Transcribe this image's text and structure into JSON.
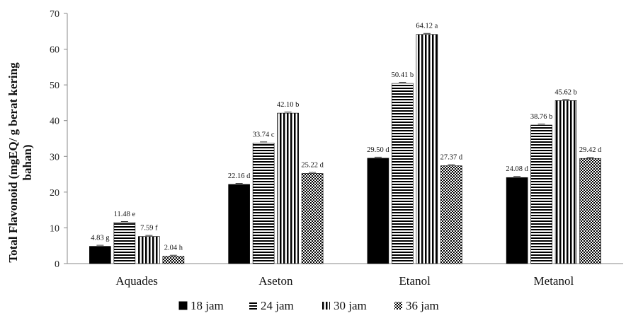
{
  "chart_data": {
    "type": "bar",
    "title": "",
    "xlabel": "",
    "ylabel_lines": [
      "Total Flavonoid (mgEQ/ g berat kering",
      "bahan)"
    ],
    "categories": [
      "Aquades",
      "Aseton",
      "Etanol",
      "Metanol"
    ],
    "ylim": [
      0,
      70
    ],
    "yticks": [
      0,
      10,
      20,
      30,
      40,
      50,
      60,
      70
    ],
    "grid": false,
    "legend_position": "bottom",
    "series": [
      {
        "name": "18 jam",
        "pattern": "solid",
        "values": [
          4.83,
          22.16,
          29.5,
          24.08
        ],
        "labels": [
          "4.83 g",
          "22.16 d",
          "29.50  d",
          "24.08  d"
        ]
      },
      {
        "name": "24 jam",
        "pattern": "horizontal",
        "values": [
          11.48,
          33.74,
          50.41,
          38.76
        ],
        "labels": [
          "11.48 e",
          "33.74 c",
          "50.41 b",
          "38.76 b"
        ]
      },
      {
        "name": "30 jam",
        "pattern": "vertical",
        "values": [
          7.59,
          42.1,
          64.12,
          45.62
        ],
        "labels": [
          "7.59 f",
          "42.10 b",
          "64.12 a",
          "45.62 b"
        ]
      },
      {
        "name": "36 jam",
        "pattern": "checker",
        "values": [
          2.04,
          25.22,
          27.37,
          29.42
        ],
        "labels": [
          "2.04 h",
          "25.22 d",
          "27.37 d",
          "29.42 d"
        ]
      }
    ]
  }
}
